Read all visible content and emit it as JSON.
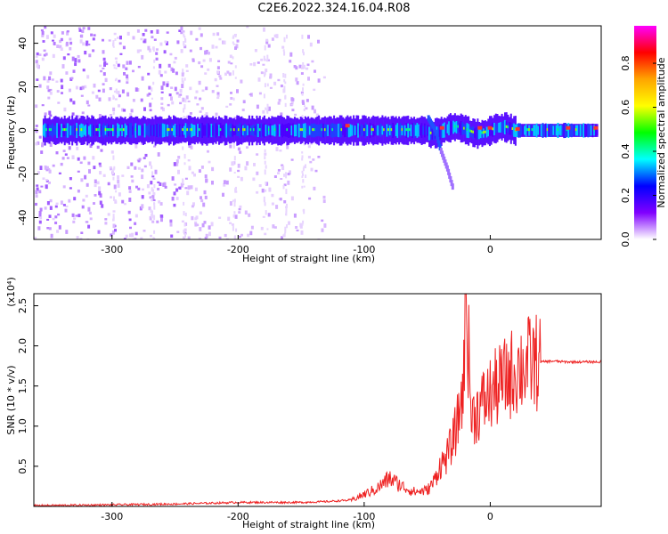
{
  "title": "C2E6.2022.324.16.04.R08",
  "chart_data": [
    {
      "type": "heatmap",
      "xlabel": "Height of straight line (km)",
      "ylabel": "Frequency (Hz)",
      "xlim": [
        -362,
        88
      ],
      "ylim": [
        -50,
        48
      ],
      "xticks": [
        -300,
        -200,
        -100,
        0
      ],
      "yticks": [
        -40,
        -20,
        0,
        20,
        40
      ],
      "colorbar": {
        "label": "Normalized spectral amplitude",
        "range": [
          0.0,
          0.97
        ],
        "ticks": [
          0.0,
          0.2,
          0.4,
          0.6,
          0.8
        ],
        "tick_labels": [
          "0.0",
          "0.2",
          "0.4",
          "0.6",
          "0.8"
        ],
        "colormap": [
          "#ff00ff",
          "#ff0000",
          "#ffa500",
          "#ffff00",
          "#00ff00",
          "#00ffff",
          "#0000ff",
          "#8000ff",
          "#ffffff"
        ]
      },
      "features": {
        "main_band_center_hz": 0,
        "main_band_halfwidth_hz": 5,
        "branch": [
          [
            -50,
            5
          ],
          [
            -45,
            0
          ],
          [
            -40,
            -10
          ],
          [
            -35,
            -18
          ],
          [
            -30,
            -28
          ]
        ]
      }
    },
    {
      "type": "line",
      "xlabel": "Height of straight line (km)",
      "ylabel": "SNR (10 * v/v)",
      "scale_note": "(x10⁴)",
      "xlim": [
        -362,
        88
      ],
      "ylim": [
        0,
        2.65
      ],
      "xticks": [
        -300,
        -200,
        -100,
        0
      ],
      "yticks": [
        0.5,
        1.0,
        1.5,
        2.0,
        2.5
      ],
      "ytick_labels": [
        "0.5",
        "1.0",
        "1.5",
        "2.0",
        "2.5"
      ],
      "series": [
        {
          "color": "#ee2222",
          "x": [
            -362,
            -300,
            -250,
            -200,
            -150,
            -130,
            -110,
            -100,
            -90,
            -80,
            -70,
            -60,
            -50,
            -45,
            -40,
            -35,
            -30,
            -25,
            -21,
            -19,
            -15,
            -10,
            -5,
            0,
            10,
            20,
            30,
            40,
            50,
            60,
            70,
            88
          ],
          "y": [
            0.01,
            0.02,
            0.03,
            0.05,
            0.05,
            0.06,
            0.08,
            0.15,
            0.22,
            0.35,
            0.25,
            0.18,
            0.2,
            0.3,
            0.5,
            0.6,
            0.8,
            1.1,
            1.6,
            2.65,
            1.1,
            1.2,
            1.3,
            1.4,
            1.55,
            1.7,
            1.78,
            1.8,
            1.81,
            1.8,
            1.8,
            1.8
          ]
        }
      ]
    }
  ]
}
